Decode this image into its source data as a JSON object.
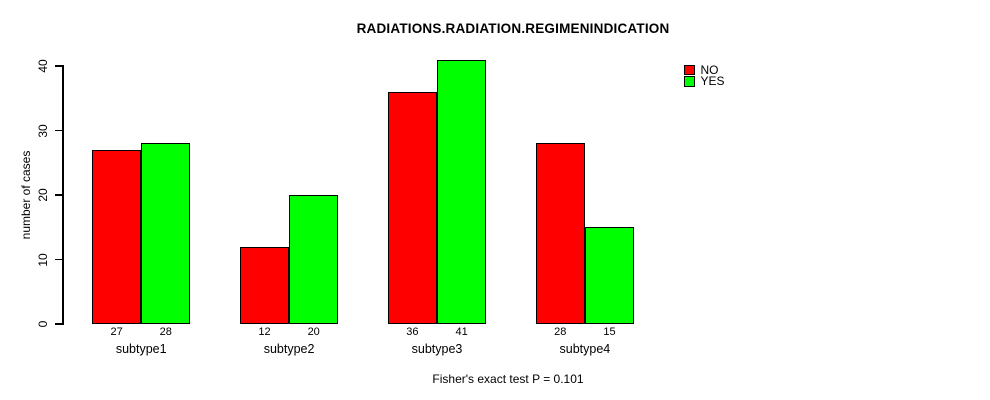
{
  "title": "RADIATIONS.RADIATION.REGIMENINDICATION",
  "caption": "Fisher's exact test P = 0.101",
  "colors": {
    "no": "#FF0000",
    "yes": "#00FF00",
    "axis": "#000000",
    "background": "#FFFFFF"
  },
  "chart_data": {
    "type": "bar",
    "title": "RADIATIONS.RADIATION.REGIMENINDICATION",
    "categories": [
      "subtype1",
      "subtype2",
      "subtype3",
      "subtype4"
    ],
    "series": [
      {
        "name": "NO",
        "color": "#FF0000",
        "values": [
          27,
          12,
          36,
          28
        ]
      },
      {
        "name": "YES",
        "color": "#00FF00",
        "values": [
          28,
          20,
          41,
          15
        ]
      }
    ],
    "xlabel": "",
    "ylabel": "number of cases",
    "ylim": [
      0,
      40
    ],
    "yticks": [
      0,
      10,
      20,
      30,
      40
    ],
    "grid": false,
    "legend_position": "topright",
    "bar_value_labels": true,
    "annotation": "Fisher's exact test P = 0.101"
  }
}
